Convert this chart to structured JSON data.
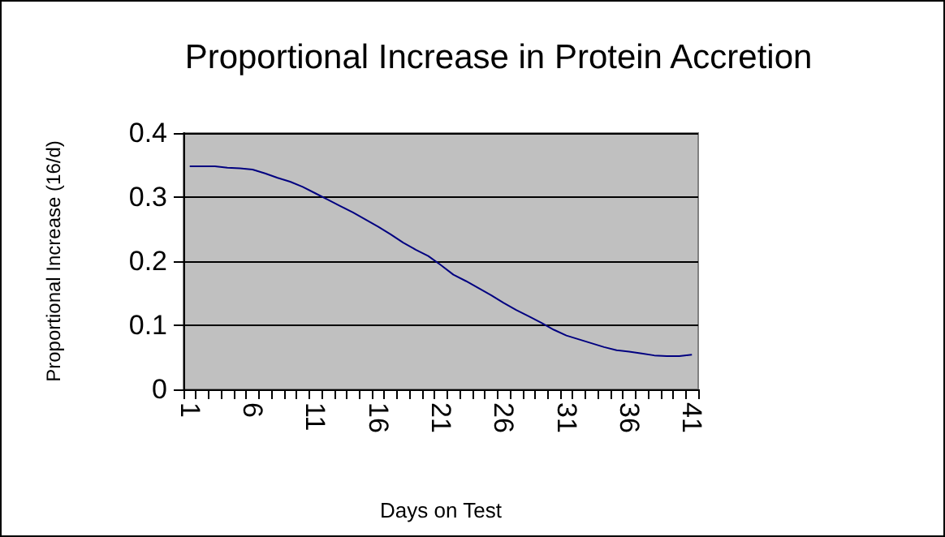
{
  "chart_data": {
    "type": "line",
    "title": "Proportional Increase in Protein Accretion",
    "xlabel": "Days on Test",
    "ylabel": "Proportional Increase (16/d)",
    "categories": [
      "1",
      null,
      null,
      null,
      null,
      "6",
      null,
      null,
      null,
      null,
      "11",
      null,
      null,
      null,
      null,
      "16",
      null,
      null,
      null,
      null,
      "21",
      null,
      null,
      null,
      null,
      "26",
      null,
      null,
      null,
      null,
      "31",
      null,
      null,
      null,
      null,
      "36",
      null,
      null,
      null,
      null,
      "41"
    ],
    "series": [
      {
        "color": "#000080",
        "values": [
          0.348,
          0.348,
          0.348,
          0.346,
          0.345,
          0.343,
          0.337,
          0.33,
          0.324,
          0.316,
          0.306,
          0.296,
          0.286,
          0.276,
          0.265,
          0.254,
          0.242,
          0.229,
          0.218,
          0.208,
          0.194,
          0.179,
          0.169,
          0.158,
          0.147,
          0.135,
          0.124,
          0.114,
          0.104,
          0.093,
          0.084,
          0.078,
          0.072,
          0.066,
          0.061,
          0.059,
          0.056,
          0.053,
          0.052,
          0.052,
          0.054
        ]
      }
    ],
    "ylim": [
      0,
      0.4
    ],
    "yticks": [
      0,
      0.1,
      0.2,
      0.3,
      0.4
    ],
    "grid": "y",
    "marker": "none",
    "line_style": "solid"
  }
}
